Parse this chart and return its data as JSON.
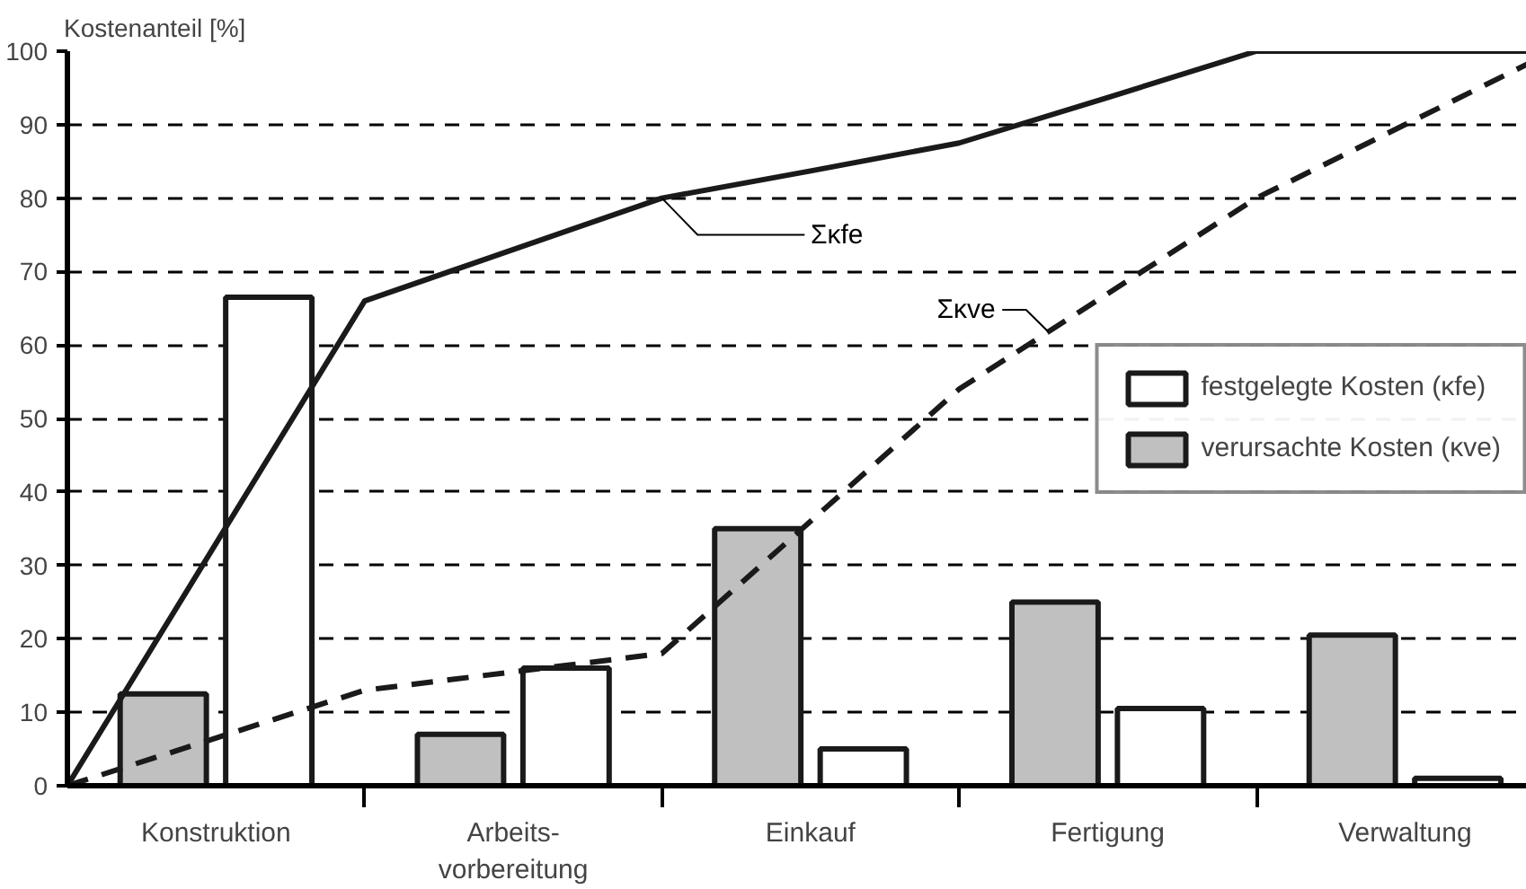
{
  "chart_data": {
    "type": "bar",
    "ylabel": "Kostenanteil [%]",
    "categories": [
      null,
      "Konstruktion",
      null,
      "Arbeits-\nvorbereitung",
      null,
      "Einkauf",
      null,
      "Fertigung",
      null,
      "Verwaltung",
      null
    ],
    "series": [
      {
        "name": "festgelegte Kosten (κfe)",
        "color": "#ffffff",
        "values": [
          null,
          66.5,
          null,
          16,
          null,
          5,
          null,
          10.5,
          null,
          1,
          null
        ]
      },
      {
        "name": "verursachte Kosten (κve)",
        "color": "#c0c0c0",
        "values": [
          null,
          12.5,
          null,
          7,
          null,
          35,
          null,
          25,
          null,
          20.5,
          null
        ]
      },
      {
        "name": "Σκfe",
        "type": "line",
        "color": "#1a1a1a",
        "line_style": "solid",
        "values": [
          0,
          33,
          66,
          73,
          80,
          83.7,
          87.5,
          93.7,
          100,
          100,
          100
        ]
      },
      {
        "name": "Σκve",
        "type": "line",
        "color": "#1a1a1a",
        "line_style": "dashed",
        "values": [
          0,
          6.5,
          13,
          15.5,
          18,
          36,
          54,
          67,
          80,
          90,
          100
        ]
      }
    ],
    "ylim": [
      0,
      100
    ],
    "yticks": [
      0,
      10,
      20,
      30,
      40,
      50,
      60,
      70,
      80,
      90,
      100
    ],
    "grid": "y",
    "legend": "right"
  }
}
